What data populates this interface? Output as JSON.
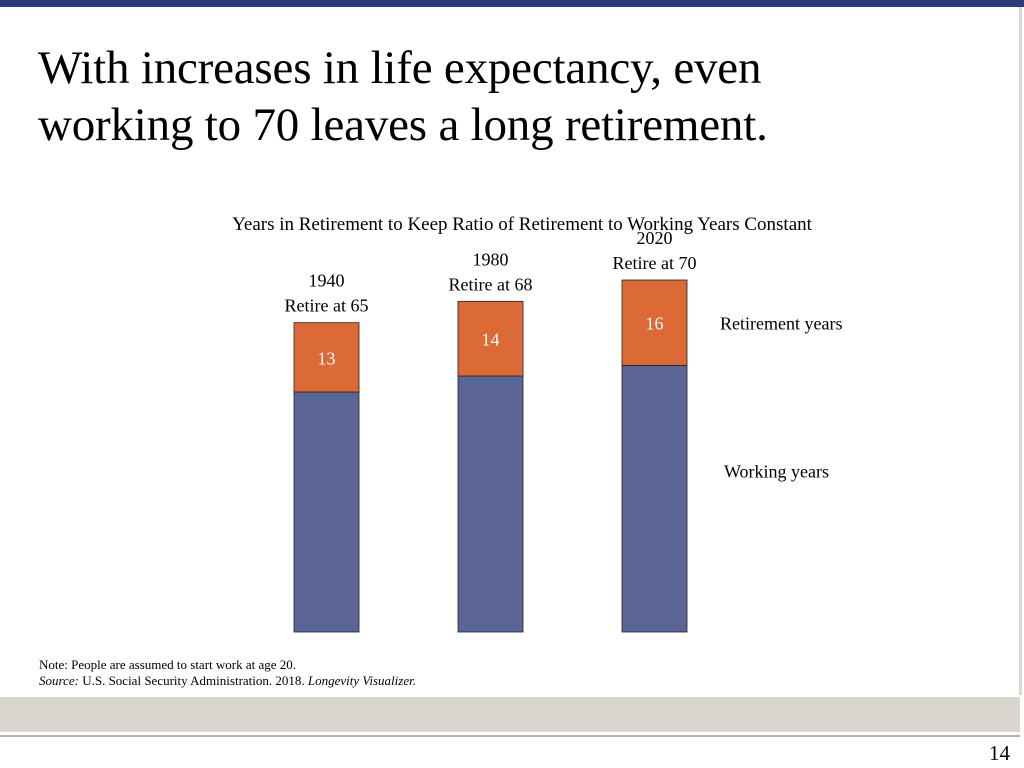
{
  "slide": {
    "title_line1": "With increases in life expectancy, even",
    "title_line2": "working to 70 leaves a long retirement.",
    "page_number": "14",
    "note": "Note: People are assumed to start work at age 20.",
    "source_label": "Source:",
    "source_text": " U.S. Social Security Administration. 2018. ",
    "source_title": "Longevity Visualizer."
  },
  "chart_data": {
    "type": "bar",
    "stacked": true,
    "title": "Years in Retirement to Keep Ratio of Retirement to Working Years Constant",
    "categories": [
      "1940",
      "1980",
      "2020"
    ],
    "category_sublabels": [
      "Retire at 65",
      "Retire at 68",
      "Retire at 70"
    ],
    "series": [
      {
        "name": "Working years",
        "values": [
          45,
          48,
          50
        ],
        "color": "#5b6697",
        "show_labels": false
      },
      {
        "name": "Retirement years",
        "values": [
          13,
          14,
          16
        ],
        "color": "#dc6a37",
        "show_labels": true
      }
    ],
    "ylim": [
      0,
      66
    ],
    "axes_visible": false,
    "grid": false,
    "legend": "right, aligned with segments"
  }
}
